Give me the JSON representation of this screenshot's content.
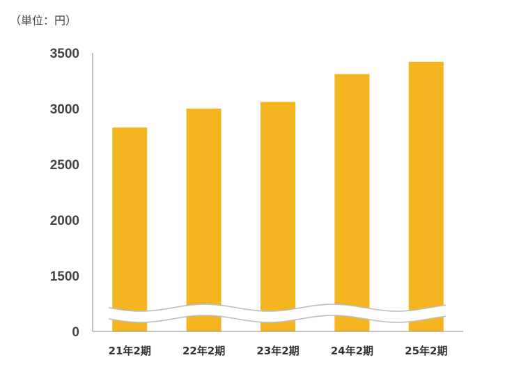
{
  "chart_data": {
    "type": "bar",
    "unit_label": "（単位：円）",
    "categories": [
      "21年2期",
      "22年2期",
      "23年2期",
      "24年2期",
      "25年2期"
    ],
    "values": [
      2830,
      3000,
      3060,
      3310,
      3420
    ],
    "ytick_labels": [
      "0",
      "1500",
      "2000",
      "2500",
      "3000",
      "3500"
    ],
    "ylim": [
      1250,
      3500
    ],
    "axis_break": true,
    "grid": false,
    "bar_color": "#F5B520"
  }
}
